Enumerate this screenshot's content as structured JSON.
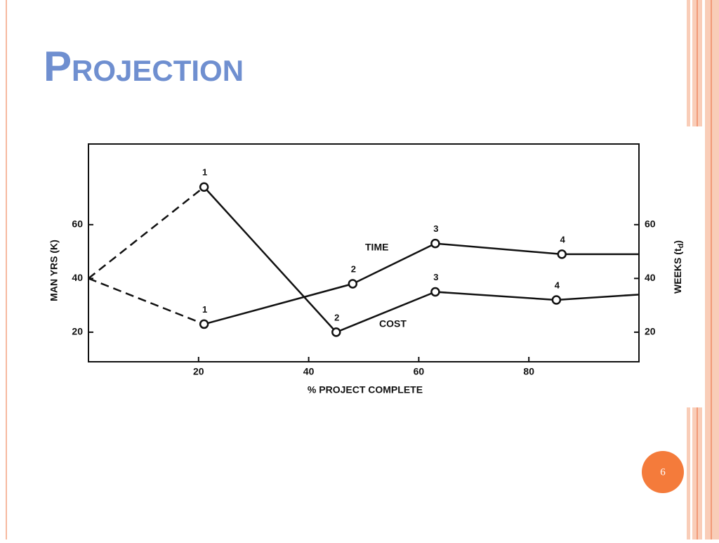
{
  "slide": {
    "title": "Projection",
    "page_number": "6"
  },
  "chart_data": {
    "type": "line",
    "x_label": "% PROJECT COMPLETE",
    "y_label": "MAN YRS (K)",
    "y2_label": [
      "WEEKS (t",
      "d",
      ")"
    ],
    "xlim": [
      0,
      100
    ],
    "xticks": [
      20,
      40,
      60,
      80
    ],
    "ylim": [
      9,
      90
    ],
    "yticks": [
      20,
      40,
      60
    ],
    "y2lim": [
      9,
      90
    ],
    "y2ticks": [
      20,
      40,
      60
    ],
    "series": [
      {
        "name": "TIME",
        "color": "#111111",
        "x": [
          0,
          21,
          48,
          63,
          86,
          100
        ],
        "values": [
          40,
          23,
          38,
          53,
          49,
          49
        ],
        "point_labels": [
          null,
          "1",
          "2",
          "3",
          "4",
          null
        ]
      },
      {
        "name": "COST",
        "color": "#111111",
        "axis": "y2",
        "x": [
          0,
          21,
          45,
          63,
          85,
          100
        ],
        "values": [
          40,
          74,
          20,
          35,
          32,
          34
        ],
        "point_labels": [
          null,
          "1",
          "2",
          "3",
          "4",
          null
        ]
      }
    ]
  }
}
